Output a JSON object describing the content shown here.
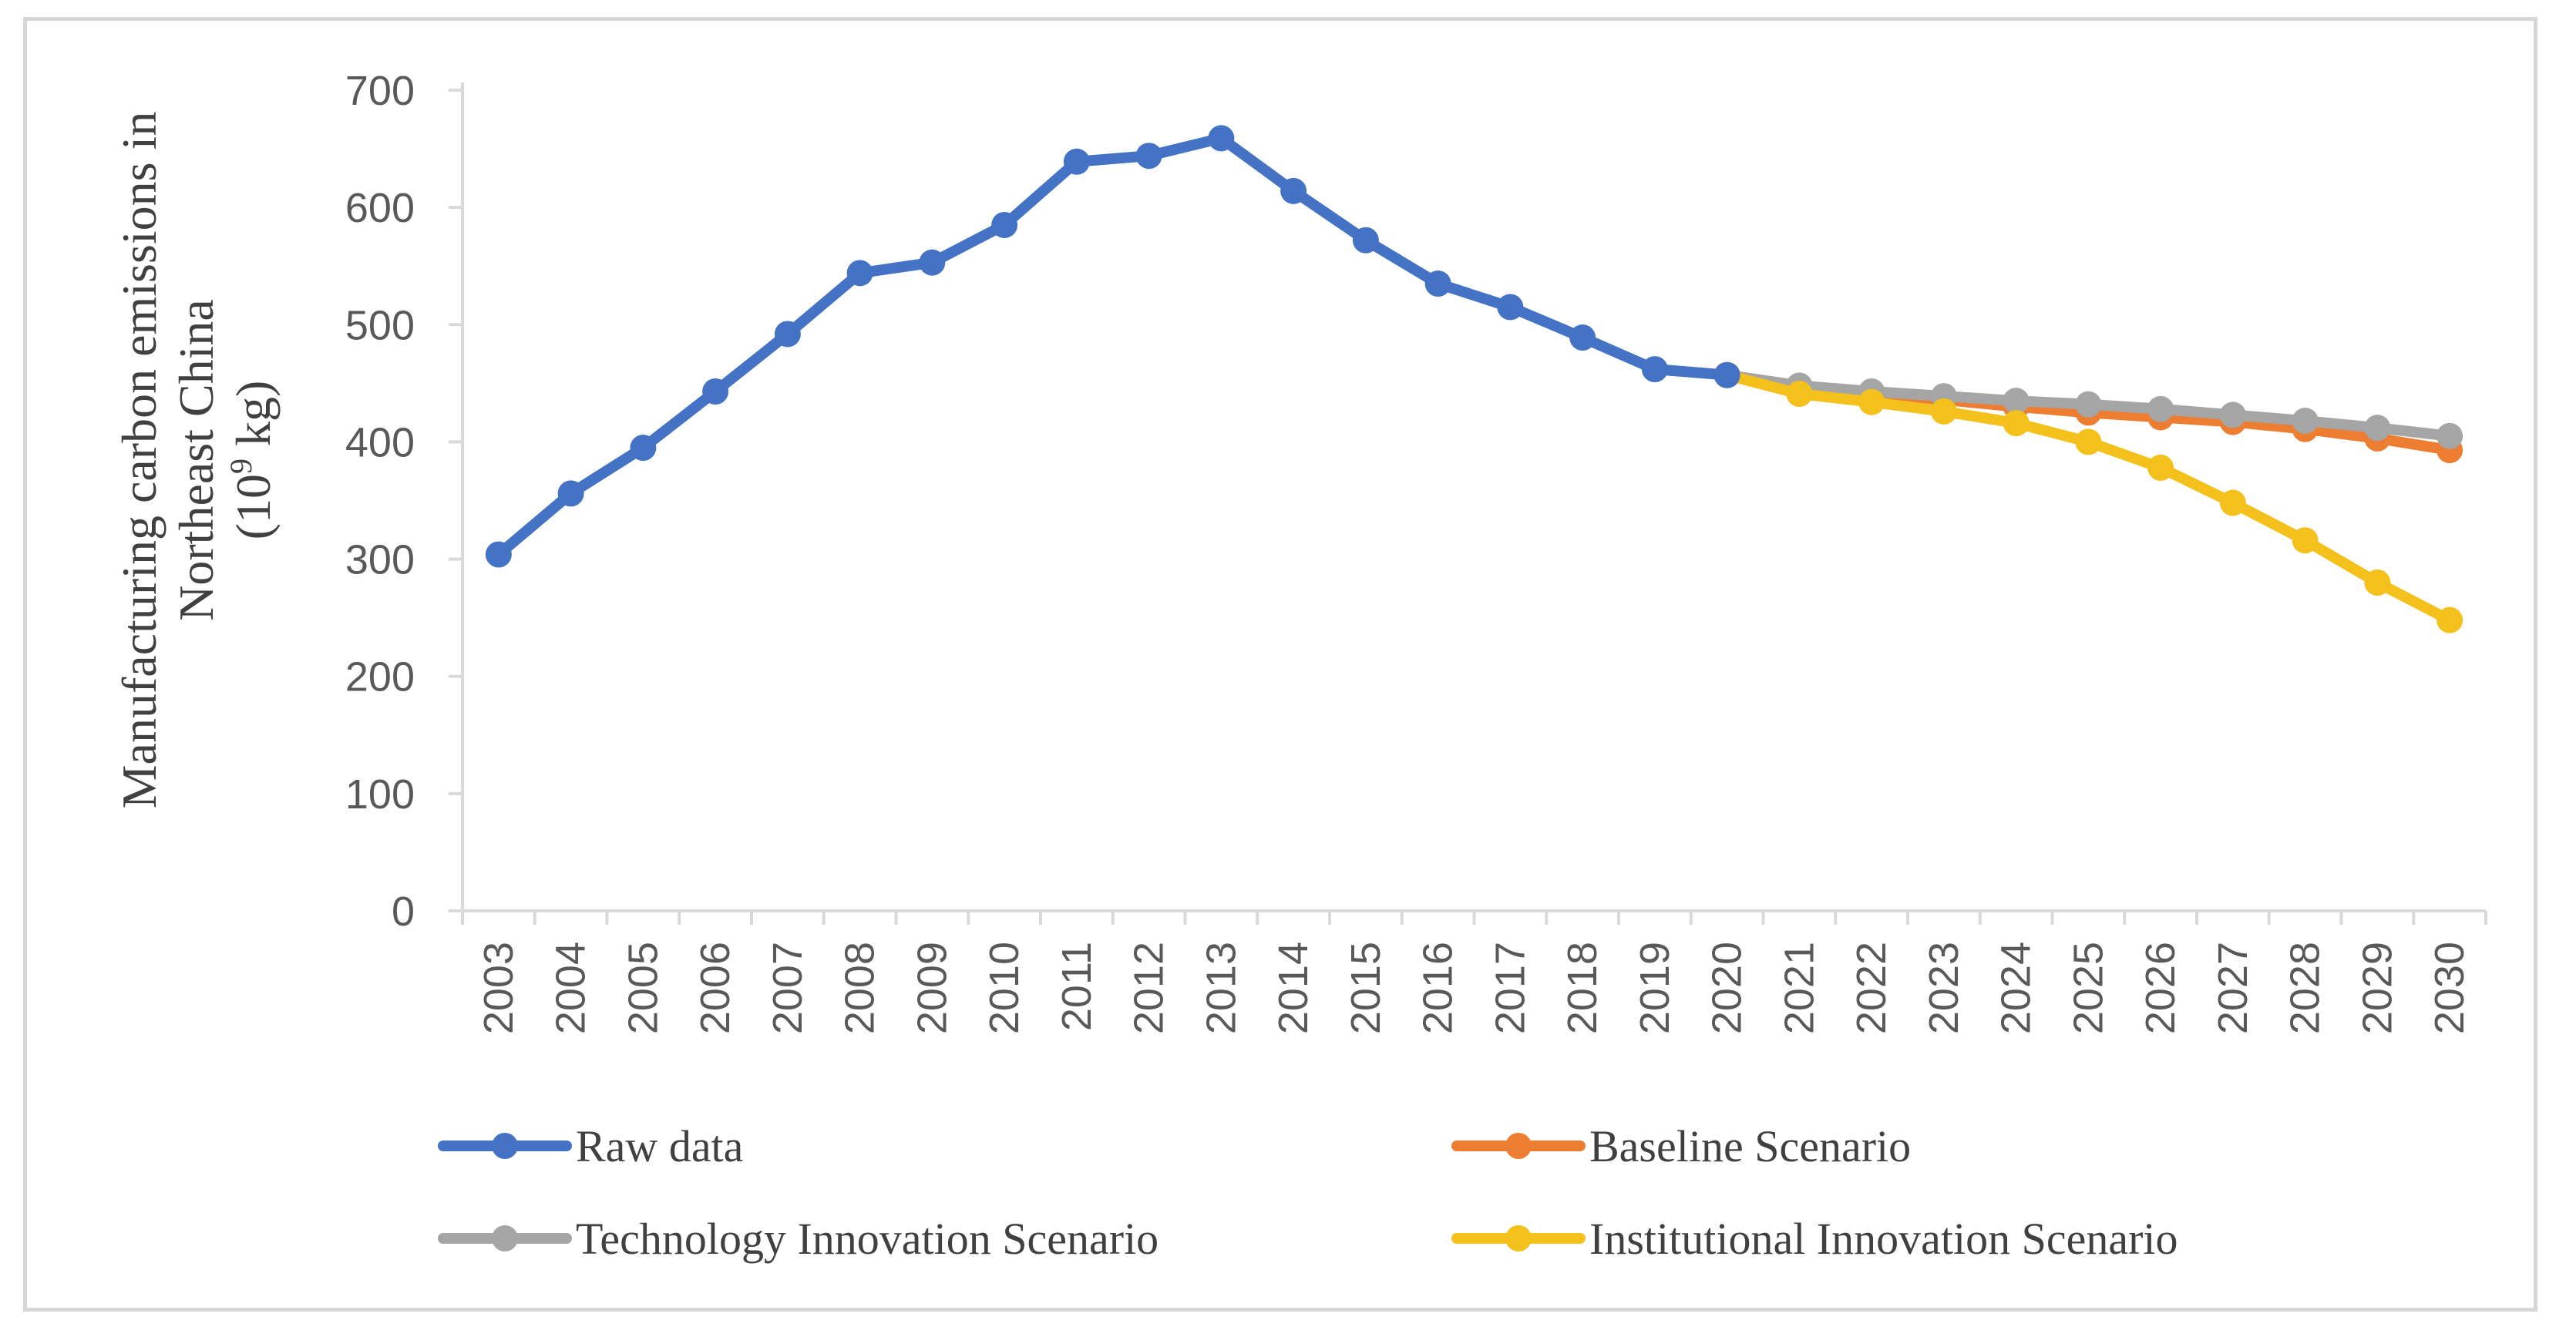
{
  "chart_data": {
    "type": "line",
    "x": [
      "2003",
      "2004",
      "2005",
      "2006",
      "2007",
      "2008",
      "2009",
      "2010",
      "2011",
      "2012",
      "2013",
      "2014",
      "2015",
      "2016",
      "2017",
      "2018",
      "2019",
      "2020",
      "2021",
      "2022",
      "2023",
      "2024",
      "2025",
      "2026",
      "2027",
      "2028",
      "2029",
      "2030"
    ],
    "ylabel_line1": "Manufacturing carbon emissions in",
    "ylabel_line2": "Northeast China",
    "ylabel_unit_open": "(10",
    "ylabel_unit_exp": "9",
    "ylabel_unit_close": " kg)",
    "ylim": [
      0,
      700
    ],
    "yticks": [
      0,
      100,
      200,
      300,
      400,
      500,
      600,
      700
    ],
    "grid": false,
    "legend_position": "bottom",
    "series": [
      {
        "name": "Raw data",
        "color": "#4472c4",
        "values": [
          304,
          356,
          395,
          443,
          492,
          544,
          553,
          585,
          639,
          644,
          659,
          614,
          572,
          535,
          515,
          489,
          462,
          457,
          null,
          null,
          null,
          null,
          null,
          null,
          null,
          null,
          null,
          null
        ]
      },
      {
        "name": "Baseline Scenario",
        "color": "#ed7d31",
        "values": [
          null,
          null,
          null,
          null,
          null,
          null,
          null,
          null,
          null,
          null,
          null,
          null,
          null,
          null,
          null,
          null,
          null,
          457,
          446,
          441,
          436,
          430,
          425,
          421,
          417,
          411,
          403,
          393
        ]
      },
      {
        "name": "Technology Innovation Scenario",
        "color": "#a5a5a5",
        "values": [
          null,
          null,
          null,
          null,
          null,
          null,
          null,
          null,
          null,
          null,
          null,
          null,
          null,
          null,
          null,
          null,
          null,
          457,
          448,
          443,
          439,
          435,
          432,
          428,
          423,
          418,
          412,
          405
        ]
      },
      {
        "name": "Institutional Innovation Scenario",
        "color": "#f4c01b",
        "values": [
          null,
          null,
          null,
          null,
          null,
          null,
          null,
          null,
          null,
          null,
          null,
          null,
          null,
          null,
          null,
          null,
          null,
          457,
          441,
          434,
          426,
          416,
          400,
          378,
          348,
          316,
          280,
          248
        ]
      }
    ]
  }
}
